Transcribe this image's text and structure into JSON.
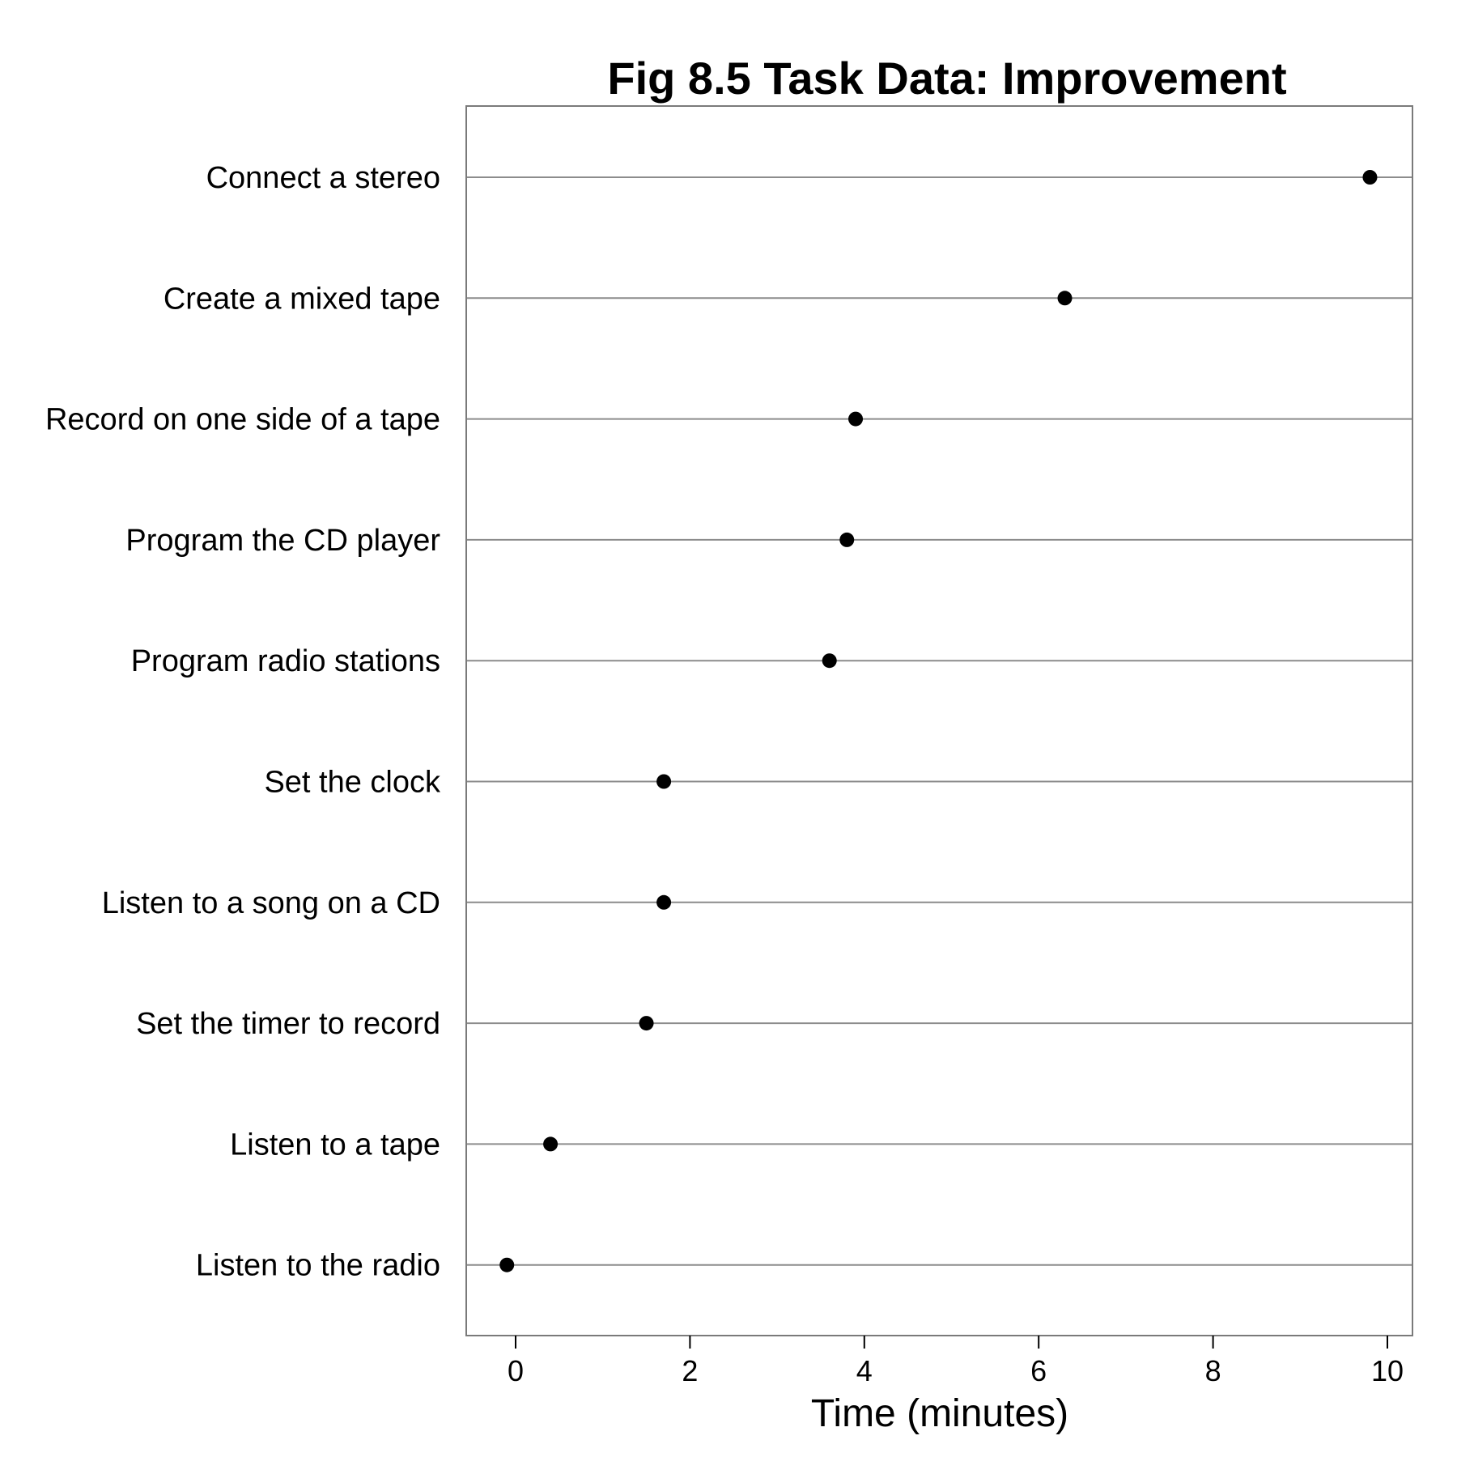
{
  "chart_data": {
    "type": "scatter",
    "title": "Fig 8.5 Task Data: Improvement",
    "xlabel": "Time (minutes)",
    "ylabel": "",
    "xlim": [
      -0.6,
      10.3
    ],
    "xticks": [
      0,
      2,
      4,
      6,
      8,
      10
    ],
    "grid": "horizontal",
    "categories": [
      "Connect a stereo",
      "Create a mixed tape",
      "Record on one side of a tape",
      "Program the CD player",
      "Program radio stations",
      "Set the clock",
      "Listen to a song on a CD",
      "Set the timer to record",
      "Listen to a tape",
      "Listen to the radio"
    ],
    "values": [
      9.8,
      6.3,
      3.9,
      3.8,
      3.6,
      1.7,
      1.7,
      1.5,
      0.4,
      -0.1
    ],
    "colors": {
      "point": "#000000",
      "gridline": "#8c8c8c",
      "frame": "#7a7a7a",
      "text": "#000000"
    }
  }
}
